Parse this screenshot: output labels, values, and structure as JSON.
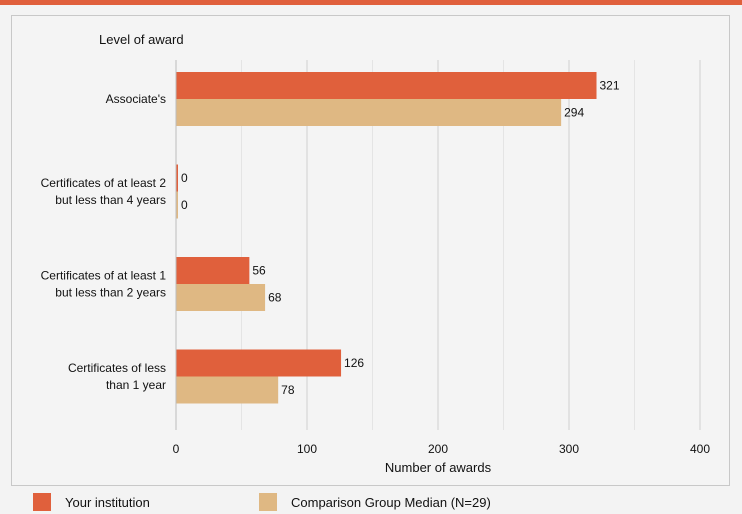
{
  "chart_data": {
    "type": "bar",
    "orientation": "horizontal",
    "y_axis_title": "Level of award",
    "x_axis_title": "Number of awards",
    "categories": [
      [
        "Associate's"
      ],
      [
        "Certificates of at least 2",
        "but less than 4 years"
      ],
      [
        "Certificates of at least 1",
        "but  less than 2 years"
      ],
      [
        "Certificates of less",
        "than 1 year"
      ]
    ],
    "series": [
      {
        "name": "Your institution",
        "color": "#e0603c",
        "values": [
          321,
          0,
          56,
          126
        ]
      },
      {
        "name": "Comparison Group Median (N=29)",
        "color": "#dfb883",
        "values": [
          294,
          0,
          68,
          78
        ]
      }
    ],
    "xlim": [
      0,
      400
    ],
    "x_ticks": [
      0,
      100,
      200,
      300,
      400
    ],
    "grid": true,
    "legend_position": "bottom"
  }
}
